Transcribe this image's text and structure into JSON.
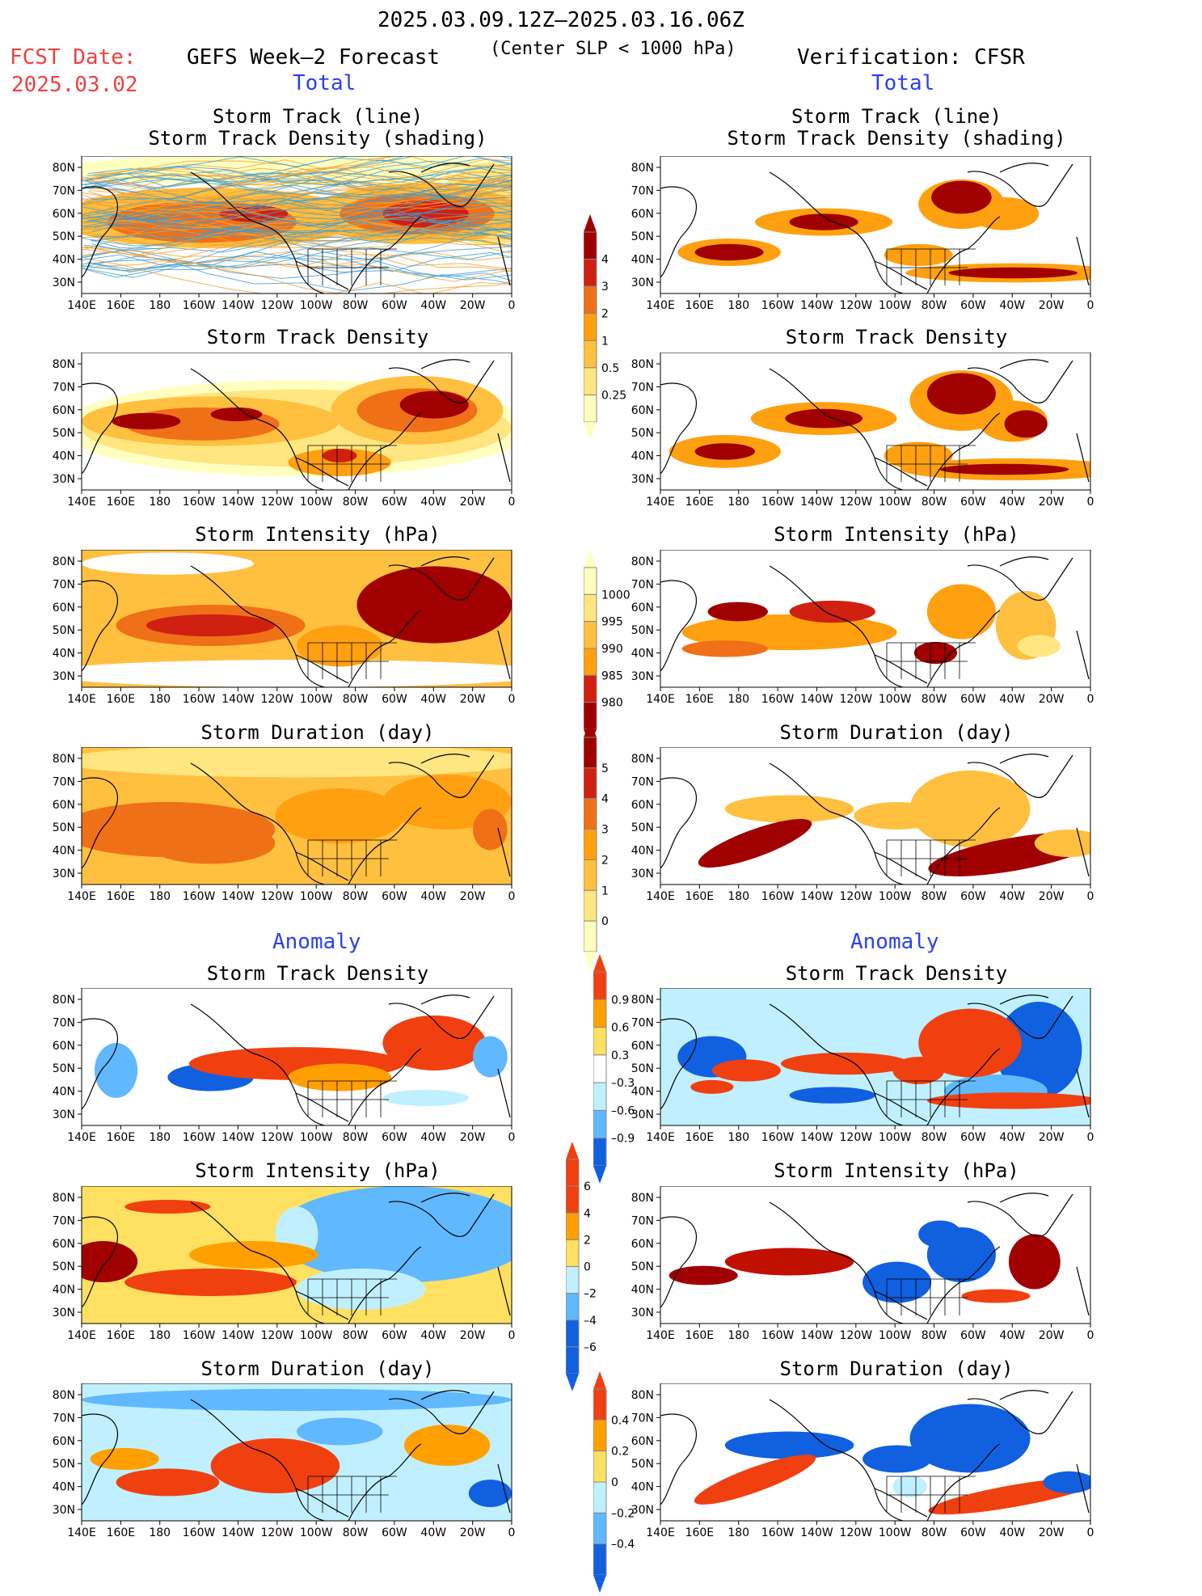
{
  "header": {
    "date_range": "2025.03.09.12Z–2025.03.16.06Z",
    "fcst_label": "FCST Date:",
    "fcst_date": "2025.03.02",
    "left_title": "GEFS Week–2 Forecast",
    "criterion": "(Center SLP < 1000 hPa)",
    "right_title": "Verification: CFSR",
    "total_label": "Total",
    "anomaly_label": "Anomaly"
  },
  "titles": {
    "track_line": "Storm Track (line)",
    "track_shading": "Storm Track Density (shading)",
    "density": "Storm Track Density",
    "intensity": "Storm Intensity (hPa)",
    "duration": "Storm Duration (day)"
  },
  "axes": {
    "lon_ticks": [
      "140E",
      "160E",
      "180",
      "160W",
      "140W",
      "120W",
      "100W",
      "80W",
      "60W",
      "40W",
      "20W",
      "0"
    ],
    "lat_ticks": [
      "80N",
      "70N",
      "60N",
      "50N",
      "40N",
      "30N"
    ]
  },
  "colorbars": {
    "density_total": [
      "4",
      "3",
      "2",
      "1",
      "0.5",
      "0.25"
    ],
    "intensity_total": [
      "1000",
      "995",
      "990",
      "985",
      "980"
    ],
    "duration_total": [
      "5",
      "4",
      "3",
      "2",
      "1",
      "0"
    ],
    "density_anom": [
      "0.9",
      "0.6",
      "0.3",
      "–0.3",
      "–0.6",
      "–0.9"
    ],
    "intensity_anom": [
      "6",
      "4",
      "2",
      "0",
      "–2",
      "–4",
      "–6"
    ],
    "duration_anom": [
      "0.4",
      "0.2",
      "0",
      "–0.2",
      "–0.4"
    ]
  },
  "palette": {
    "total": [
      "#ffffc0",
      "#ffe680",
      "#ffc040",
      "#ffa010",
      "#f07018",
      "#d02010",
      "#a00000"
    ],
    "anom_pos": [
      "#ffe060",
      "#ffa000",
      "#f04010"
    ],
    "anom_neg": [
      "#c0f0ff",
      "#60b8ff",
      "#1060e0"
    ],
    "track_line": "#3a9cd8",
    "track_orange": "#f0a030"
  }
}
